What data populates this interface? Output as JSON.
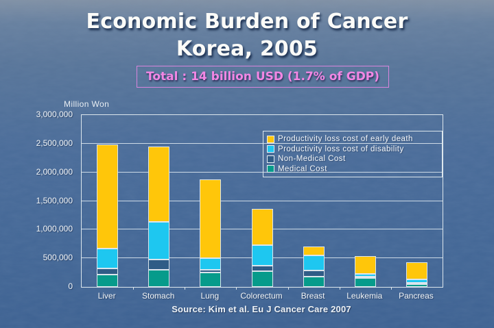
{
  "slide": {
    "title_line1": "Economic Burden of Cancer",
    "title_line2": "Korea, 2005",
    "total_box": "Total : 14 billion USD (1.7% of GDP)",
    "source": "Source: Kim et al. Eu J Cancer Care 2007"
  },
  "colors": {
    "background": "#486a97",
    "title_text": "#fbfbf8",
    "total_text": "#f287e4",
    "total_border": "#d985dd",
    "axis_line": "#dde7ed",
    "label_text": "#f2f6f9",
    "early_death": "#ffc60a",
    "disability": "#1ec7f0",
    "non_medical": "#305c86",
    "medical": "#069b8b"
  },
  "chart_data": {
    "type": "bar",
    "stacked": true,
    "unit_label": "Million Won",
    "title": "",
    "xlabel": "",
    "ylabel": "Million Won",
    "ylim": [
      0,
      3000000
    ],
    "ytick_step": 500000,
    "yticks": [
      "3,000,000",
      "2,500,000",
      "2,000,000",
      "1,500,000",
      "1,000,000",
      "500,000",
      "0"
    ],
    "grid": true,
    "legend_position": "top-right",
    "categories": [
      "Liver",
      "Stomach",
      "Lung",
      "Colorectum",
      "Breast",
      "Leukemia",
      "Pancreas"
    ],
    "series": [
      {
        "name": "Medical Cost",
        "color": "#069b8b",
        "values": [
          210000,
          300000,
          250000,
          280000,
          180000,
          150000,
          45000
        ]
      },
      {
        "name": "Non-Medical Cost",
        "color": "#305c86",
        "values": [
          110000,
          180000,
          50000,
          90000,
          110000,
          30000,
          25000
        ]
      },
      {
        "name": "Productivity loss cost of disability",
        "color": "#1ec7f0",
        "values": [
          350000,
          650000,
          200000,
          360000,
          260000,
          50000,
          60000
        ]
      },
      {
        "name": "Productivity loss cost of early death",
        "color": "#ffc60a",
        "values": [
          1820000,
          1320000,
          1380000,
          630000,
          160000,
          310000,
          300000
        ]
      }
    ],
    "totals": [
      2490000,
      2450000,
      1880000,
      1360000,
      710000,
      540000,
      430000
    ],
    "legend_order": [
      "Productivity loss cost of early death",
      "Productivity loss cost of disability",
      "Non-Medical Cost",
      "Medical Cost"
    ]
  }
}
